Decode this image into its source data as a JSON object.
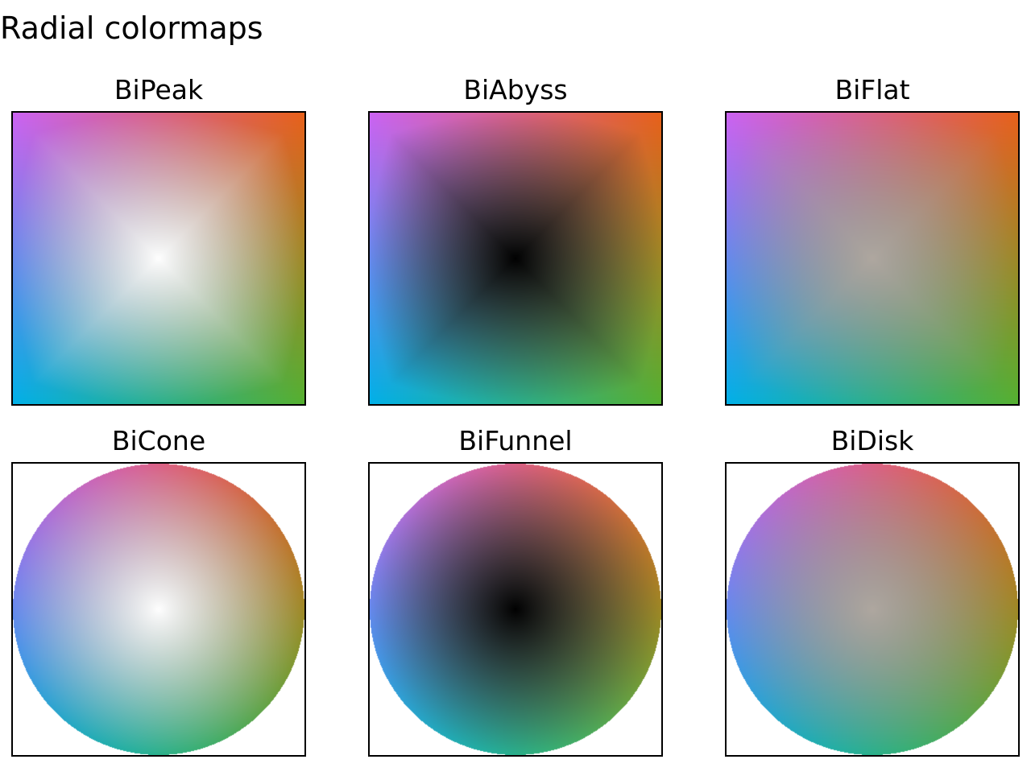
{
  "figure": {
    "title": "Radial colormaps"
  },
  "panels": [
    {
      "title": "BiPeak",
      "center": "white",
      "shape": "square"
    },
    {
      "title": "BiAbyss",
      "center": "black",
      "shape": "square"
    },
    {
      "title": "BiFlat",
      "center": "gray",
      "shape": "square"
    },
    {
      "title": "BiCone",
      "center": "white",
      "shape": "disk"
    },
    {
      "title": "BiFunnel",
      "center": "black",
      "shape": "disk"
    },
    {
      "title": "BiDisk",
      "center": "gray",
      "shape": "disk"
    }
  ],
  "colors": {
    "top_left": "#cc62f2",
    "top_right": "#e8601a",
    "bottom_right": "#55b030",
    "bottom_left": "#00b0e8",
    "white_center": "#ffffff",
    "black_center": "#000000",
    "gray_center": "#b0a8a0"
  }
}
